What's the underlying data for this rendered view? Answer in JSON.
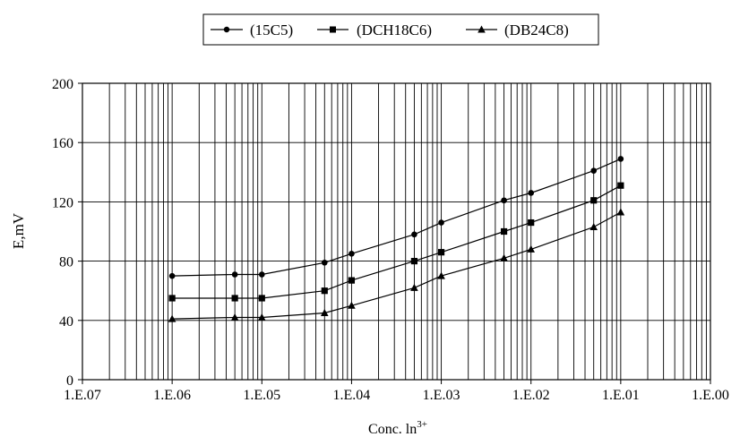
{
  "chart_data": {
    "type": "line",
    "xlabel": "Conc. ln",
    "xlabel_sup": "3+",
    "ylabel": "E,mV",
    "x_scale": "log",
    "xlim": [
      1e-07,
      1
    ],
    "ylim": [
      0,
      200
    ],
    "grid": true,
    "legend_position": "top",
    "x_tick_values": [
      1e-07,
      1e-06,
      1e-05,
      0.0001,
      0.001,
      0.01,
      0.1,
      1
    ],
    "x_tick_labels": [
      "1.E.07",
      "1.E.06",
      "1.E.05",
      "1.E.04",
      "1.E.03",
      "1.E.02",
      "1.E.01",
      "1.E.00"
    ],
    "y_ticks": [
      0,
      40,
      80,
      120,
      160,
      200
    ],
    "x": [
      1e-06,
      5e-06,
      1e-05,
      5e-05,
      0.0001,
      0.0005,
      0.001,
      0.005,
      0.01,
      0.05,
      0.1
    ],
    "series": [
      {
        "name": "(15C5)",
        "marker": "circle",
        "values": [
          70,
          71,
          71,
          79,
          85,
          98,
          106,
          121,
          126,
          141,
          149
        ]
      },
      {
        "name": "(DCH18C6)",
        "marker": "square",
        "values": [
          55,
          55,
          55,
          60,
          67,
          80,
          86,
          100,
          106,
          121,
          131
        ]
      },
      {
        "name": "(DB24C8)",
        "marker": "triangle",
        "values": [
          41,
          42,
          42,
          45,
          50,
          62,
          70,
          82,
          88,
          103,
          113
        ]
      }
    ]
  }
}
